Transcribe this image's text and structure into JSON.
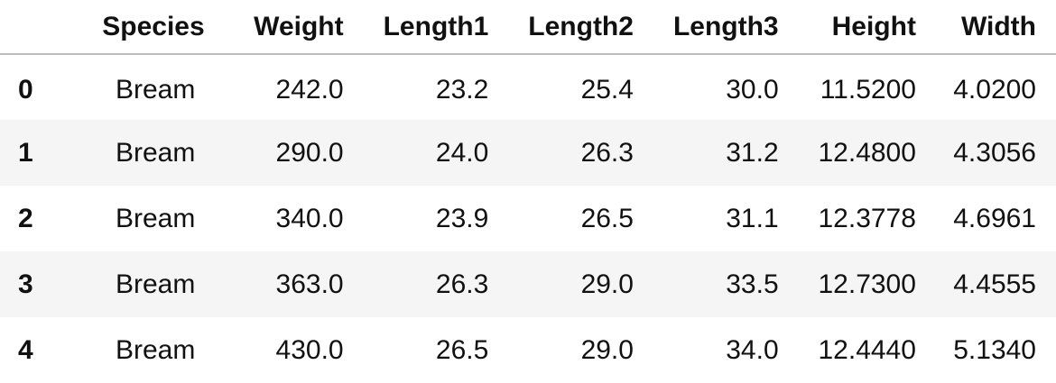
{
  "table": {
    "columns": [
      "",
      "Species",
      "Weight",
      "Length1",
      "Length2",
      "Length3",
      "Height",
      "Width"
    ],
    "rows": [
      {
        "index": "0",
        "Species": "Bream",
        "Weight": "242.0",
        "Length1": "23.2",
        "Length2": "25.4",
        "Length3": "30.0",
        "Height": "11.5200",
        "Width": "4.0200"
      },
      {
        "index": "1",
        "Species": "Bream",
        "Weight": "290.0",
        "Length1": "24.0",
        "Length2": "26.3",
        "Length3": "31.2",
        "Height": "12.4800",
        "Width": "4.3056"
      },
      {
        "index": "2",
        "Species": "Bream",
        "Weight": "340.0",
        "Length1": "23.9",
        "Length2": "26.5",
        "Length3": "31.1",
        "Height": "12.3778",
        "Width": "4.6961"
      },
      {
        "index": "3",
        "Species": "Bream",
        "Weight": "363.0",
        "Length1": "26.3",
        "Length2": "29.0",
        "Length3": "33.5",
        "Height": "12.7300",
        "Width": "4.4555"
      },
      {
        "index": "4",
        "Species": "Bream",
        "Weight": "430.0",
        "Length1": "26.5",
        "Length2": "29.0",
        "Length3": "34.0",
        "Height": "12.4440",
        "Width": "5.1340"
      }
    ]
  }
}
